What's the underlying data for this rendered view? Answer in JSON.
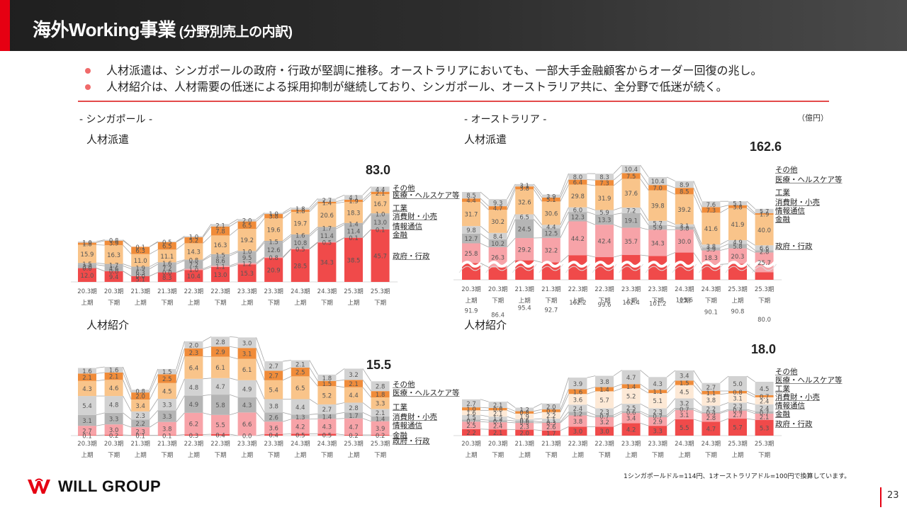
{
  "header": {
    "title_main": "海外Working事業",
    "title_sub": " (分野別売上の内訳)"
  },
  "bullets": [
    "人材派遣は、シンガポールの政府・行政が堅調に推移。オーストラリアにおいても、一部大手金融顧客からオーダー回復の兆し。",
    "人材紹介は、人材需要の低迷による採用抑制が継続しており、シンガポール、オーストラリア共に、全分野で低迷が続く。"
  ],
  "sections": {
    "singapore": "- シンガポール -",
    "australia": "- オーストラリア -"
  },
  "unit": "（億円）",
  "footer": {
    "logo": "WILL GROUP",
    "note": "1シンガポールドル=114円、1オーストラリアドル=100円で換算しています。",
    "page": "23"
  },
  "colors": {
    "gov": "#f04a4a",
    "fin": "#f7a3a8",
    "it": "#b5b5b5",
    "cons": "#f9c48a",
    "ind_sg": "#f9c48a",
    "health": "#f08c3a",
    "other": "#d2d2d2",
    "cons_light": "#fde9d6"
  },
  "chart_data": [
    {
      "id": "sg_dispatch",
      "type": "bar",
      "stacked": true,
      "title": "人材派遣",
      "region": "シンガポール",
      "total_label": "83.0",
      "categories": [
        "20.3期 上期",
        "20.3期 下期",
        "21.3期 上期",
        "21.3期 下期",
        "22.3期 上期",
        "22.3期 下期",
        "23.3期 上期",
        "23.3期 下期",
        "24.3期 上期",
        "24.3期 下期",
        "25.3期 上期",
        "25.3期 下期"
      ],
      "series": [
        {
          "name": "政府・行政",
          "values": [
            12.0,
            9.4,
            5.1,
            8.3,
            10.4,
            13.0,
            15.3,
            20.9,
            28.5,
            34.3,
            38.5,
            45.7
          ]
        },
        {
          "name": "金融",
          "values": [
            0.0,
            0.0,
            0.0,
            0.0,
            1.0,
            1.1,
            1.2,
            0.8,
            0.5,
            0.5,
            0.1,
            0.1
          ]
        },
        {
          "name": "情報通信",
          "values": [
            3.0,
            4.6,
            6.3,
            7.2,
            7.2,
            8.6,
            9.5,
            12.6,
            10.8,
            11.4,
            11.4,
            13.0
          ]
        },
        {
          "name": "消費財・小売",
          "values": [
            1.5,
            1.7,
            1.9,
            1.6,
            0.8,
            1.5,
            1.0,
            1.5,
            1.6,
            1.7,
            1.4,
            1.0
          ]
        },
        {
          "name": "工業",
          "values": [
            15.9,
            16.3,
            11.0,
            11.1,
            14.3,
            16.3,
            19.2,
            19.6,
            19.7,
            20.6,
            18.3,
            16.7
          ]
        },
        {
          "name": "医療・ヘルスケア等",
          "values": [
            1.8,
            3.9,
            6.3,
            6.5,
            5.2,
            7.8,
            6.5,
            3.8,
            1.8,
            1.4,
            1.9,
            2.1
          ]
        },
        {
          "name": "その他",
          "values": [
            1.0,
            0.8,
            0.1,
            0.5,
            1.0,
            2.1,
            2.0,
            1.0,
            1.8,
            2.7,
            4.1,
            4.4
          ]
        }
      ],
      "ylim": [
        0,
        100
      ]
    },
    {
      "id": "au_dispatch",
      "type": "bar",
      "stacked": true,
      "broken_axis": true,
      "title": "人材派遣",
      "region": "オーストラリア",
      "total_label": "162.6",
      "categories": [
        "20.3期 上期",
        "20.3期 下期",
        "21.3期 上期",
        "21.3期 下期",
        "22.3期 上期",
        "22.3期 下期",
        "23.3期 上期",
        "23.3期 下期",
        "24.3期 上期",
        "24.3期 下期",
        "25.3期 上期",
        "25.3期 下期"
      ],
      "series": [
        {
          "name": "政府・行政",
          "values": [
            91.9,
            86.4,
            95.4,
            92.7,
            102.2,
            99.6,
            102.4,
            101.2,
            105.6,
            90.1,
            90.8,
            80.0
          ]
        },
        {
          "name": "金融",
          "values": [
            25.8,
            26.3,
            29.2,
            32.2,
            44.2,
            42.4,
            35.7,
            34.3,
            30.0,
            18.3,
            20.3,
            25.7
          ]
        },
        {
          "name": "情報通信",
          "values": [
            12.7,
            10.2,
            24.5,
            12.5,
            12.3,
            13.3,
            19.1,
            5.9,
            3.8,
            3.9,
            5.8,
            2.8
          ]
        },
        {
          "name": "消費財・小売",
          "values": [
            9.8,
            8.4,
            6.5,
            4.4,
            6.0,
            5.9,
            7.2,
            5.7,
            3.1,
            3.8,
            4.9,
            6.6
          ]
        },
        {
          "name": "工業",
          "values": [
            31.7,
            30.2,
            32.6,
            30.6,
            29.8,
            31.9,
            37.6,
            39.8,
            39.2,
            41.6,
            41.9,
            40.0
          ]
        },
        {
          "name": "医療・ヘルスケア等",
          "values": [
            4.4,
            4.7,
            3.8,
            5.1,
            6.4,
            7.3,
            7.5,
            7.0,
            8.5,
            7.3,
            3.8,
            1.9
          ]
        },
        {
          "name": "その他",
          "values": [
            8.5,
            9.3,
            3.1,
            3.9,
            8.0,
            8.3,
            10.4,
            10.4,
            8.9,
            7.6,
            5.1,
            5.7
          ]
        }
      ]
    },
    {
      "id": "sg_placement",
      "type": "bar",
      "stacked": true,
      "title": "人材紹介",
      "region": "シンガポール",
      "total_label": "15.5",
      "categories": [
        "20.3期 上期",
        "20.3期 下期",
        "21.3期 上期",
        "21.3期 下期",
        "22.3期 上期",
        "22.3期 下期",
        "23.3期 上期",
        "23.3期 下期",
        "24.3期 上期",
        "24.3期 下期",
        "25.3期 上期",
        "25.3期 下期"
      ],
      "series": [
        {
          "name": "政府・行政",
          "values": [
            0.1,
            0.2,
            0.1,
            0.1,
            0.3,
            0.4,
            0.0,
            0.4,
            0.5,
            0.5,
            0.2,
            0.2
          ]
        },
        {
          "name": "金融",
          "values": [
            2.7,
            3.0,
            2.3,
            3.8,
            6.2,
            5.5,
            6.6,
            3.6,
            4.2,
            4.3,
            4.7,
            3.9
          ]
        },
        {
          "name": "情報通信",
          "values": [
            3.1,
            3.3,
            2.2,
            3.3,
            4.9,
            5.8,
            4.3,
            2.6,
            1.3,
            1.4,
            1.7,
            1.4
          ]
        },
        {
          "name": "消費財・小売",
          "values": [
            5.4,
            4.8,
            2.3,
            3.3,
            4.8,
            4.7,
            4.9,
            3.8,
            4.4,
            2.7,
            2.8,
            2.1
          ]
        },
        {
          "name": "工業",
          "values": [
            4.3,
            4.6,
            3.4,
            4.5,
            6.4,
            6.1,
            6.1,
            5.4,
            6.5,
            5.2,
            4.4,
            3.3
          ]
        },
        {
          "name": "医療・ヘルスケア等",
          "values": [
            2.1,
            2.1,
            2.0,
            2.5,
            2.3,
            2.9,
            3.1,
            2.7,
            2.5,
            1.5,
            2.1,
            1.8
          ]
        },
        {
          "name": "その他",
          "values": [
            1.6,
            1.6,
            0.8,
            1.5,
            2.0,
            2.8,
            3.0,
            2.7,
            2.1,
            1.8,
            3.2,
            2.8
          ]
        }
      ],
      "ylim": [
        0,
        32
      ]
    },
    {
      "id": "au_placement",
      "type": "bar",
      "stacked": true,
      "title": "人材紹介",
      "region": "オーストラリア",
      "total_label": "18.0",
      "categories": [
        "20.3期 上期",
        "20.3期 下期",
        "21.3期 上期",
        "21.3期 下期",
        "22.3期 上期",
        "22.3期 下期",
        "23.3期 上期",
        "23.3期 下期",
        "24.3期 上期",
        "24.3期 下期",
        "25.3期 上期",
        "25.3期 下期"
      ],
      "series": [
        {
          "name": "政府・行政",
          "values": [
            2.2,
            2.1,
            2.0,
            1.7,
            3.0,
            3.0,
            4.2,
            3.3,
            5.5,
            4.7,
            5.7,
            5.3
          ]
        },
        {
          "name": "金融",
          "values": [
            2.5,
            2.4,
            2.3,
            2.6,
            3.8,
            3.2,
            3.4,
            2.9,
            3.1,
            2.8,
            2.7,
            2.1
          ]
        },
        {
          "name": "情報通信",
          "values": [
            0.7,
            0.7,
            0.6,
            0.3,
            1.2,
            0.7,
            0.6,
            0.7,
            0.7,
            0.4,
            0.4,
            0.7
          ]
        },
        {
          "name": "消費財・小売",
          "values": [
            1.5,
            1.2,
            0.6,
            1.1,
            2.4,
            2.3,
            2.5,
            2.3,
            3.2,
            2.2,
            2.3,
            2.4
          ]
        },
        {
          "name": "工業",
          "values": [
            1.6,
            2.1,
            1.9,
            2.2,
            3.6,
            5.7,
            5.2,
            5.1,
            4.5,
            3.8,
            3.1,
            2.4
          ]
        },
        {
          "name": "医療・ヘルスケア等",
          "values": [
            1.0,
            0.8,
            0.8,
            0.9,
            1.6,
            1.4,
            1.4,
            1.1,
            1.5,
            1.1,
            0.8,
            0.7
          ]
        },
        {
          "name": "その他",
          "values": [
            2.7,
            2.1,
            1.2,
            2.0,
            3.9,
            3.8,
            4.7,
            4.3,
            3.4,
            2.7,
            5.0,
            4.5
          ]
        }
      ],
      "ylim": [
        0,
        32
      ]
    }
  ],
  "legend_labels": [
    "その他",
    "医療・ヘルスケア等",
    "工業",
    "消費財・小売",
    "情報通信",
    "金融",
    "政府・行政"
  ]
}
